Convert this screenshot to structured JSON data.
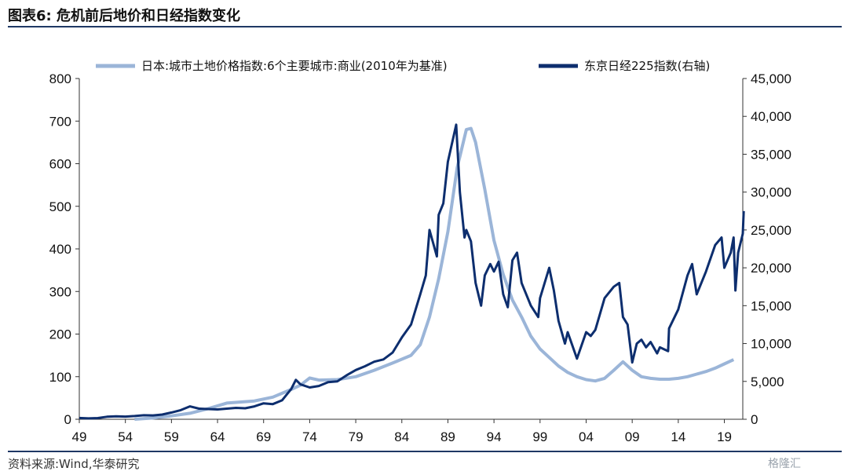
{
  "header": {
    "title": "图表6:  危机前后地价和日经指数变化"
  },
  "footer": {
    "source": "资料来源:Wind,华泰研究",
    "watermark": "格隆汇"
  },
  "chart_data": {
    "type": "line",
    "title": "",
    "xlabel": "",
    "x_ticks": [
      "49",
      "54",
      "59",
      "64",
      "69",
      "74",
      "79",
      "84",
      "89",
      "94",
      "99",
      "04",
      "09",
      "14",
      "19"
    ],
    "x_range": [
      1949,
      2021
    ],
    "y_left": {
      "ticks": [
        "0",
        "100",
        "200",
        "300",
        "400",
        "500",
        "600",
        "700",
        "800"
      ],
      "range": [
        0,
        800
      ]
    },
    "y_right": {
      "ticks": [
        "0",
        "5,000",
        "10,000",
        "15,000",
        "20,000",
        "25,000",
        "30,000",
        "35,000",
        "40,000",
        "45,000"
      ],
      "range": [
        0,
        45000
      ]
    },
    "legend_position": "top",
    "series": [
      {
        "name": "日本:城市土地价格指数:6个主要城市:商业(2010年为基准)",
        "axis": "left",
        "color": "#9bb5d8",
        "points": [
          [
            1955,
            0
          ],
          [
            1957,
            3
          ],
          [
            1959,
            8
          ],
          [
            1961,
            14
          ],
          [
            1963,
            25
          ],
          [
            1965,
            38
          ],
          [
            1968,
            43
          ],
          [
            1970,
            52
          ],
          [
            1972,
            70
          ],
          [
            1973,
            80
          ],
          [
            1974,
            97
          ],
          [
            1975,
            92
          ],
          [
            1977,
            93
          ],
          [
            1979,
            100
          ],
          [
            1981,
            115
          ],
          [
            1983,
            132
          ],
          [
            1985,
            150
          ],
          [
            1986,
            175
          ],
          [
            1987,
            240
          ],
          [
            1988,
            330
          ],
          [
            1989,
            440
          ],
          [
            1990,
            590
          ],
          [
            1991,
            680
          ],
          [
            1991.5,
            683
          ],
          [
            1992,
            650
          ],
          [
            1993,
            540
          ],
          [
            1994,
            420
          ],
          [
            1995,
            340
          ],
          [
            1996,
            280
          ],
          [
            1997,
            240
          ],
          [
            1998,
            195
          ],
          [
            1999,
            165
          ],
          [
            2000,
            145
          ],
          [
            2001,
            125
          ],
          [
            2002,
            110
          ],
          [
            2003,
            100
          ],
          [
            2004,
            93
          ],
          [
            2005,
            90
          ],
          [
            2006,
            96
          ],
          [
            2007,
            115
          ],
          [
            2008,
            135
          ],
          [
            2009,
            115
          ],
          [
            2010,
            100
          ],
          [
            2011,
            96
          ],
          [
            2012,
            94
          ],
          [
            2013,
            94
          ],
          [
            2014,
            96
          ],
          [
            2015,
            100
          ],
          [
            2016,
            106
          ],
          [
            2017,
            112
          ],
          [
            2018,
            120
          ],
          [
            2019,
            130
          ],
          [
            2020,
            140
          ]
        ]
      },
      {
        "name": "东京日经225指数(右轴)",
        "axis": "right",
        "color": "#0d2e6e",
        "points": [
          [
            1949,
            170
          ],
          [
            1950,
            110
          ],
          [
            1951,
            160
          ],
          [
            1952,
            330
          ],
          [
            1953,
            390
          ],
          [
            1954,
            355
          ],
          [
            1955,
            420
          ],
          [
            1956,
            530
          ],
          [
            1957,
            510
          ],
          [
            1958,
            620
          ],
          [
            1959,
            890
          ],
          [
            1960,
            1200
          ],
          [
            1961,
            1700
          ],
          [
            1962,
            1400
          ],
          [
            1963,
            1350
          ],
          [
            1964,
            1300
          ],
          [
            1965,
            1400
          ],
          [
            1966,
            1500
          ],
          [
            1967,
            1450
          ],
          [
            1968,
            1700
          ],
          [
            1969,
            2100
          ],
          [
            1970,
            2000
          ],
          [
            1971,
            2500
          ],
          [
            1972,
            4000
          ],
          [
            1972.5,
            5200
          ],
          [
            1973,
            4600
          ],
          [
            1974,
            4200
          ],
          [
            1975,
            4400
          ],
          [
            1976,
            4900
          ],
          [
            1977,
            5000
          ],
          [
            1978,
            5800
          ],
          [
            1979,
            6500
          ],
          [
            1980,
            7000
          ],
          [
            1981,
            7600
          ],
          [
            1982,
            7900
          ],
          [
            1983,
            8800
          ],
          [
            1984,
            10800
          ],
          [
            1985,
            12500
          ],
          [
            1986,
            16500
          ],
          [
            1986.6,
            19000
          ],
          [
            1987,
            25000
          ],
          [
            1987.8,
            21500
          ],
          [
            1988,
            27000
          ],
          [
            1988.5,
            28500
          ],
          [
            1989,
            34000
          ],
          [
            1989.9,
            38900
          ],
          [
            1990.3,
            30000
          ],
          [
            1990.8,
            24000
          ],
          [
            1991,
            25000
          ],
          [
            1991.5,
            23500
          ],
          [
            1992,
            18000
          ],
          [
            1992.6,
            15000
          ],
          [
            1993,
            19000
          ],
          [
            1993.6,
            20500
          ],
          [
            1994,
            19500
          ],
          [
            1994.5,
            20800
          ],
          [
            1995,
            16500
          ],
          [
            1995.5,
            14800
          ],
          [
            1996,
            21000
          ],
          [
            1996.5,
            22000
          ],
          [
            1997,
            18000
          ],
          [
            1998,
            15000
          ],
          [
            1998.8,
            13500
          ],
          [
            1999,
            16000
          ],
          [
            2000,
            20000
          ],
          [
            2000.5,
            17000
          ],
          [
            2001,
            13000
          ],
          [
            2001.7,
            10000
          ],
          [
            2002,
            11500
          ],
          [
            2003,
            8000
          ],
          [
            2004,
            11500
          ],
          [
            2004.5,
            11000
          ],
          [
            2005,
            11800
          ],
          [
            2006,
            16000
          ],
          [
            2007,
            17500
          ],
          [
            2007.6,
            18000
          ],
          [
            2008,
            13500
          ],
          [
            2008.5,
            12500
          ],
          [
            2009,
            7500
          ],
          [
            2009.5,
            10000
          ],
          [
            2010,
            10500
          ],
          [
            2010.5,
            9500
          ],
          [
            2011,
            10200
          ],
          [
            2011.7,
            8700
          ],
          [
            2012,
            9500
          ],
          [
            2012.9,
            9000
          ],
          [
            2013,
            12000
          ],
          [
            2014,
            14500
          ],
          [
            2015,
            19000
          ],
          [
            2015.5,
            20500
          ],
          [
            2016,
            16500
          ],
          [
            2017,
            19500
          ],
          [
            2018,
            23000
          ],
          [
            2018.7,
            24000
          ],
          [
            2019,
            20000
          ],
          [
            2019.7,
            22000
          ],
          [
            2020,
            24000
          ],
          [
            2020.2,
            17000
          ],
          [
            2020.5,
            22000
          ],
          [
            2021,
            24500
          ],
          [
            2021.1,
            27500
          ]
        ]
      }
    ]
  }
}
